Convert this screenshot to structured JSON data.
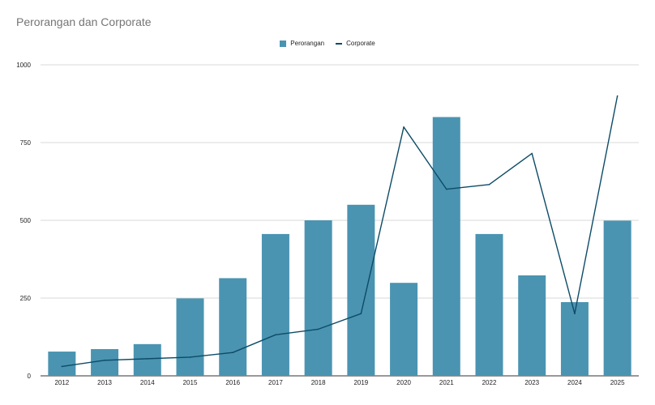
{
  "chart_data": {
    "type": "bar",
    "title": "Perorangan dan Corporate",
    "categories": [
      "2012",
      "2013",
      "2014",
      "2015",
      "2016",
      "2017",
      "2018",
      "2019",
      "2020",
      "2021",
      "2022",
      "2023",
      "2024",
      "2025"
    ],
    "series": [
      {
        "name": "Perorangan",
        "kind": "bar",
        "color": "#4a94b1",
        "values": [
          78,
          86,
          102,
          249,
          314,
          456,
          500,
          550,
          299,
          832,
          456,
          323,
          237,
          499
        ]
      },
      {
        "name": "Corporate",
        "kind": "line",
        "color": "#0d4b67",
        "values": [
          30,
          50,
          55,
          60,
          75,
          132,
          150,
          200,
          800,
          600,
          615,
          715,
          200,
          900
        ]
      }
    ],
    "yticks": [
      "0",
      "250",
      "500",
      "750",
      "1000"
    ],
    "ylim": [
      0,
      1000
    ],
    "xlabel": "",
    "ylabel": "",
    "grid": true,
    "legend_position": "top-center"
  }
}
